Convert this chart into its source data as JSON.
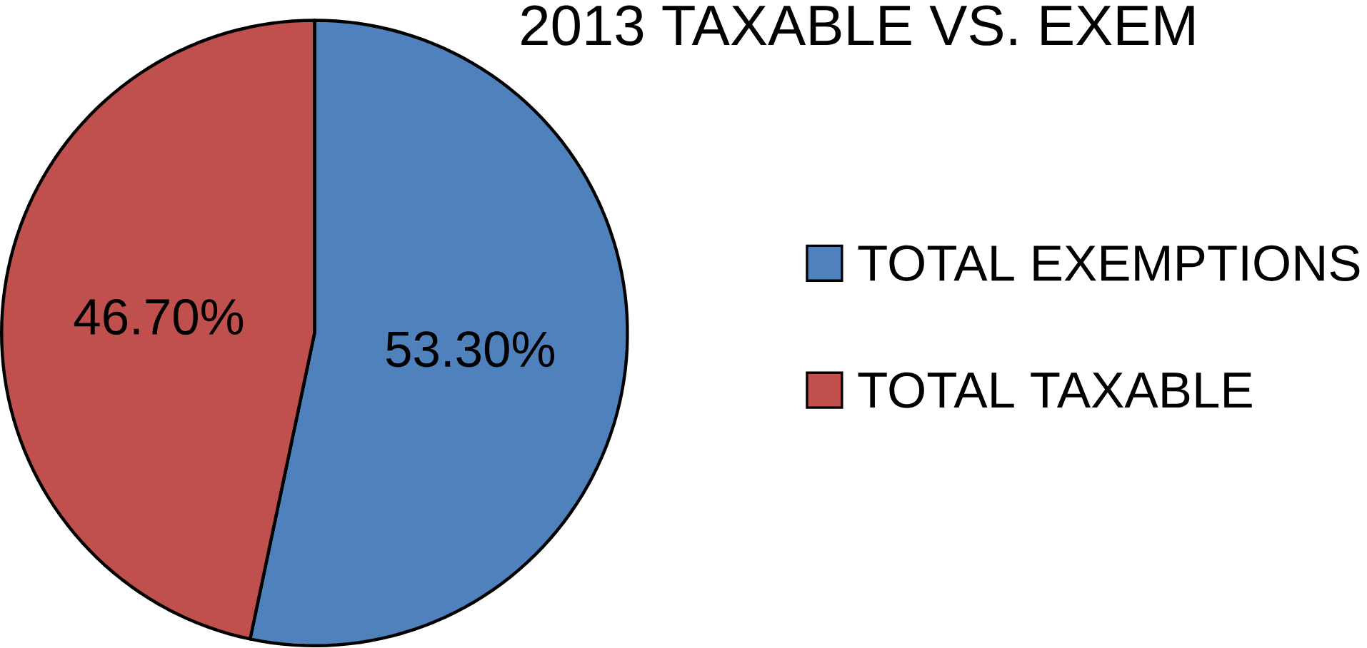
{
  "chart_data": {
    "type": "pie",
    "title": "2013 TAXABLE VS. EXEM",
    "categories": [
      "TOTAL EXEMPTIONS",
      "TOTAL TAXABLE"
    ],
    "values": [
      53.3,
      46.7
    ],
    "value_labels": [
      "53.30%",
      "46.70%"
    ],
    "colors": [
      "#4f81bd",
      "#c0504d"
    ],
    "legend": "right"
  }
}
